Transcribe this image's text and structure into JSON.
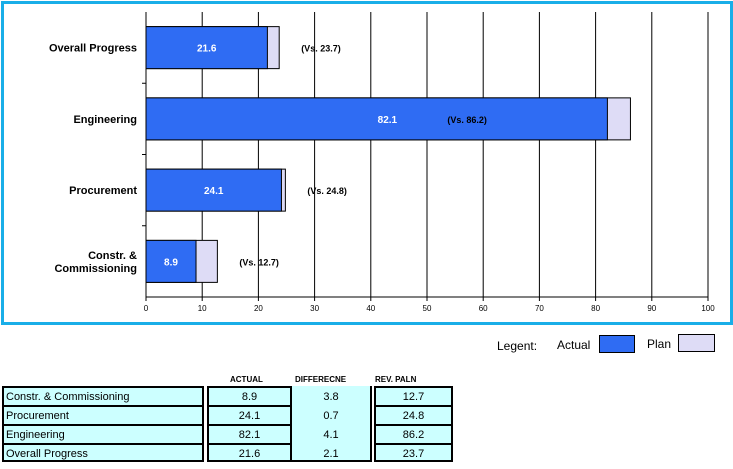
{
  "chart_data": {
    "type": "bar",
    "orientation": "horizontal",
    "categories": [
      "Overall Progress",
      "Engineering",
      "Procurement",
      "Constr. & Commissioning"
    ],
    "category_labels": [
      [
        "Overall Progress"
      ],
      [
        "Engineering"
      ],
      [
        "Procurement"
      ],
      [
        "Constr. &",
        "Commissioning"
      ]
    ],
    "series": [
      {
        "name": "Actual",
        "values": [
          21.6,
          82.1,
          24.1,
          8.9
        ],
        "color": "#2f6cf3"
      },
      {
        "name": "Plan",
        "values": [
          23.7,
          86.2,
          24.8,
          12.7
        ],
        "color": "#dedcf6"
      }
    ],
    "data_labels": [
      "21.6",
      "82.1",
      "24.1",
      "8.9"
    ],
    "comparison_labels": [
      "(Vs. 23.7)",
      "(Vs. 86.2)",
      "(Vs. 24.8)",
      "(Vs. 12.7)"
    ],
    "xlim": [
      0,
      100
    ],
    "xticks": [
      0,
      10,
      20,
      30,
      40,
      50,
      60,
      70,
      80,
      90,
      100
    ],
    "grid": "vertical",
    "frame_color": "#19aee8"
  },
  "legend": {
    "title": "Legent:",
    "actual_label": "Actual",
    "plan_label": "Plan"
  },
  "table": {
    "headers": {
      "actual": "ACTUAL",
      "difference": "DIFFERECNE",
      "rev_plan": "REV. PALN"
    },
    "rows": [
      {
        "name": "Constr. & Commissioning",
        "actual": "8.9",
        "difference": "3.8",
        "rev_plan": "12.7"
      },
      {
        "name": "Procurement",
        "actual": "24.1",
        "difference": "0.7",
        "rev_plan": "24.8"
      },
      {
        "name": "Engineering",
        "actual": "82.1",
        "difference": "4.1",
        "rev_plan": "86.2"
      },
      {
        "name": "Overall Progress",
        "actual": "21.6",
        "difference": "2.1",
        "rev_plan": "23.7"
      }
    ],
    "cell_color": "#ccffff"
  }
}
